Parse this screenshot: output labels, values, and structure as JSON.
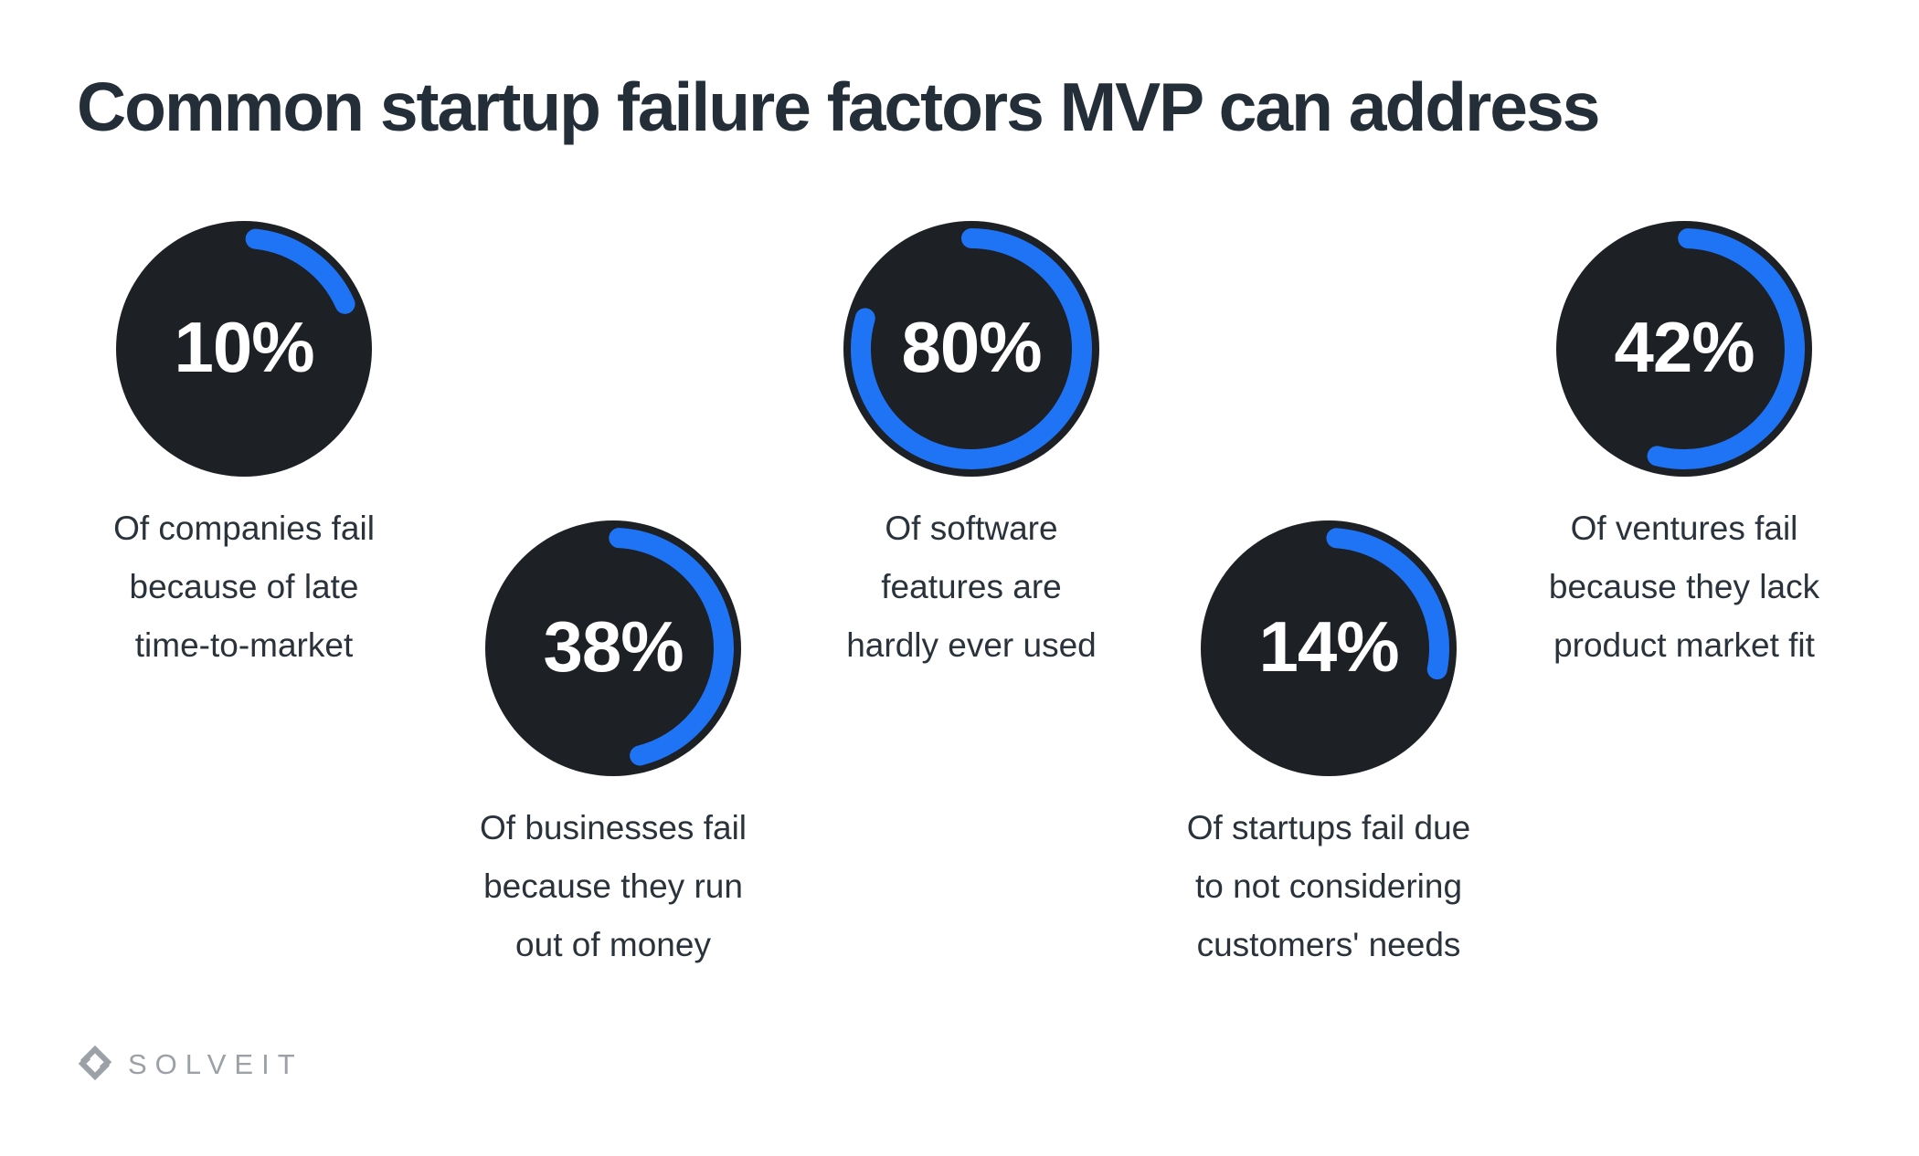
{
  "colors": {
    "background": "#FFFFFF",
    "accent_blue": "#1E74F4",
    "circle_dark": "#1D2025",
    "title_text": "#242E38",
    "caption_text": "#2A333B",
    "percent_text": "#FFFFFF",
    "logo_gray": "#9BA1A6"
  },
  "brand": {
    "logo_icon": "solveit-diamond-s-icon",
    "logo_text": "SOLVEIT"
  },
  "chart_data": {
    "type": "pie",
    "subtype": "donut-progress-stats",
    "title": "Common startup failure factors MVP can address",
    "unit": "%",
    "legend": "none",
    "items": [
      {
        "percent": 10,
        "label": "10%",
        "caption_lines": [
          "Of companies fail",
          "because of late",
          "time-to-market"
        ],
        "arc": {
          "start_deg": 6,
          "sweep_deg": 60
        }
      },
      {
        "percent": 80,
        "label": "80%",
        "caption_lines": [
          "Of software",
          "features are",
          "hardly ever used"
        ],
        "arc": {
          "start_deg": 0,
          "sweep_deg": 286
        }
      },
      {
        "percent": 42,
        "label": "42%",
        "caption_lines": [
          "Of ventures fail",
          "because they lack",
          "product market fit"
        ],
        "arc": {
          "start_deg": 2,
          "sweep_deg": 192
        }
      },
      {
        "percent": 38,
        "label": "38%",
        "caption_lines": [
          "Of businesses fail",
          "because they run",
          "out of money"
        ],
        "arc": {
          "start_deg": 3,
          "sweep_deg": 163
        }
      },
      {
        "percent": 14,
        "label": "14%",
        "caption_lines": [
          "Of startups fail due",
          "to not considering",
          "customers' needs"
        ],
        "arc": {
          "start_deg": 4,
          "sweep_deg": 97
        }
      }
    ]
  }
}
